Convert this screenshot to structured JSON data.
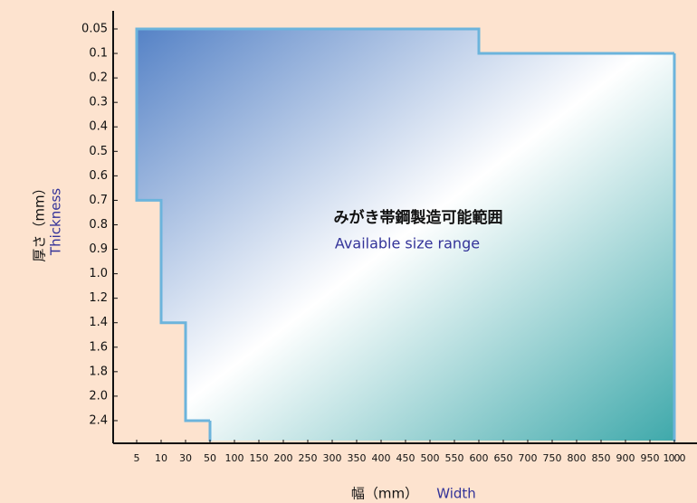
{
  "chart_data": {
    "type": "area",
    "annotations": [
      "みがき帯鋼製造可能範囲",
      "Available size range"
    ],
    "ylabel": "厚さ（mm）",
    "ylabel_en": "Thickness",
    "xlabel": "幅（mm）",
    "xlabel_en": "Width",
    "xticks": [
      5,
      10,
      30,
      50,
      100,
      150,
      200,
      250,
      300,
      350,
      400,
      450,
      500,
      550,
      600,
      650,
      700,
      750,
      800,
      850,
      900,
      950,
      1000
    ],
    "yticks": [
      0.05,
      0.1,
      0.2,
      0.3,
      0.4,
      0.5,
      0.6,
      0.7,
      0.8,
      0.9,
      {
        "value": 1,
        "label": "1.0"
      },
      1.2,
      1.4,
      1.6,
      1.8,
      {
        "value": 2,
        "label": "2.0"
      },
      2.4
    ],
    "outline": {
      "x": [
        50,
        30,
        30,
        10,
        10,
        5,
        5,
        600,
        600,
        1000
      ],
      "y": [
        2.4,
        2.4,
        1.4,
        1.4,
        0.7,
        0.7,
        0.05,
        0.05,
        0.1,
        0.1
      ]
    },
    "colors": [
      "#5582c6",
      "#ffffff",
      "#3fa9ab"
    ],
    "edge_color": "#6cb4dc"
  }
}
